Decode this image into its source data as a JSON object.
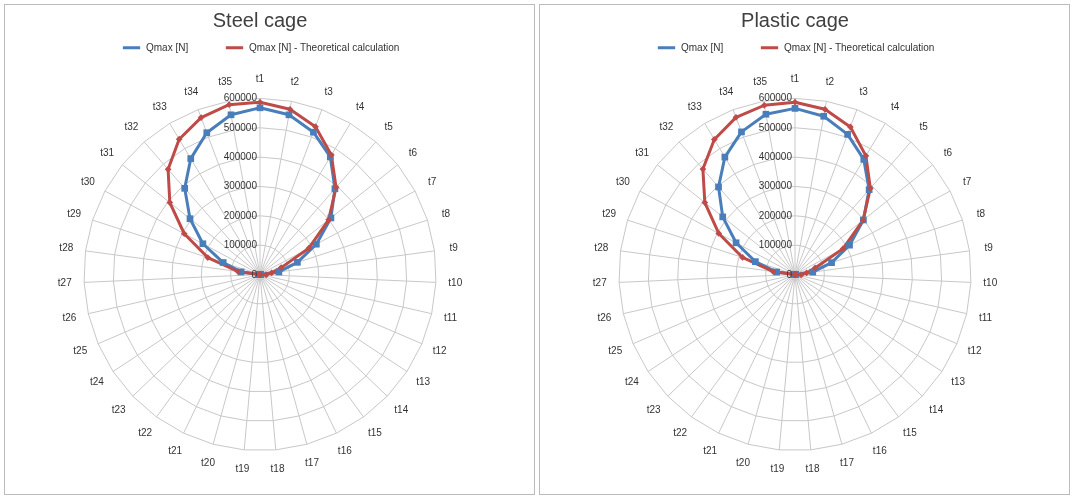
{
  "chart_data": [
    {
      "type": "radar",
      "title": "Steel cage",
      "categories": [
        "t1",
        "t2",
        "t3",
        "t4",
        "t5",
        "t6",
        "t7",
        "t8",
        "t9",
        "t10",
        "t11",
        "t12",
        "t13",
        "t14",
        "t15",
        "t16",
        "t17",
        "t18",
        "t19",
        "t20",
        "t21",
        "t22",
        "t23",
        "t24",
        "t25",
        "t26",
        "t27",
        "t28",
        "t29",
        "t30",
        "t31",
        "t32",
        "t33",
        "t34",
        "t35"
      ],
      "ylim": [
        0,
        600000
      ],
      "yticks": [
        0,
        100000,
        200000,
        300000,
        400000,
        500000,
        600000
      ],
      "grid": true,
      "legend": "top",
      "series": [
        {
          "name": "Qmax [N]",
          "color": "#4a7ebb",
          "marker": "square",
          "values": [
            568000,
            553000,
            518000,
            467000,
            388000,
            309000,
            218000,
            134000,
            65000,
            0,
            0,
            0,
            0,
            0,
            0,
            0,
            0,
            0,
            0,
            0,
            0,
            0,
            0,
            0,
            0,
            0,
            0,
            65000,
            132000,
            221000,
            305000,
            390000,
            460000,
            516000,
            553000
          ]
        },
        {
          "name": "Qmax [N] - Theoretical calculation",
          "color": "#be4b48",
          "marker": "diamond",
          "values": [
            587000,
            572000,
            538000,
            474000,
            394000,
            299000,
            189000,
            76000,
            40000,
            21000,
            0,
            0,
            0,
            0,
            0,
            0,
            0,
            0,
            0,
            0,
            0,
            0,
            0,
            0,
            0,
            0,
            null,
            76000,
            187000,
            293000,
            393000,
            476000,
            537000,
            571000,
            588000
          ]
        }
      ]
    },
    {
      "type": "radar",
      "title": "Plastic cage",
      "categories": [
        "t1",
        "t2",
        "t3",
        "t4",
        "t5",
        "t6",
        "t7",
        "t8",
        "t9",
        "t10",
        "t11",
        "t12",
        "t13",
        "t14",
        "t15",
        "t16",
        "t17",
        "t18",
        "t19",
        "t20",
        "t21",
        "t22",
        "t23",
        "t24",
        "t25",
        "t26",
        "t27",
        "t28",
        "t29",
        "t30",
        "t31",
        "t32",
        "t33",
        "t34",
        "t35"
      ],
      "ylim": [
        0,
        600000
      ],
      "yticks": [
        0,
        100000,
        200000,
        300000,
        400000,
        500000,
        600000
      ],
      "grid": true,
      "legend": "top",
      "series": [
        {
          "name": "Qmax [N]",
          "color": "#4a7ebb",
          "marker": "square",
          "values": [
            566000,
            548000,
            510000,
            457000,
            384000,
            298000,
            211000,
            131000,
            61000,
            0,
            0,
            0,
            0,
            0,
            0,
            0,
            0,
            0,
            0,
            0,
            0,
            0,
            0,
            0,
            0,
            0,
            0,
            63000,
            142000,
            228000,
            315000,
            396000,
            466000,
            519000,
            555000
          ]
        },
        {
          "name": "Qmax [N] - Theoretical calculation",
          "color": "#be4b48",
          "marker": "diamond",
          "values": [
            587000,
            572000,
            537000,
            471000,
            390000,
            297000,
            186000,
            72000,
            40000,
            21000,
            0,
            0,
            0,
            0,
            0,
            0,
            0,
            0,
            0,
            0,
            0,
            0,
            0,
            0,
            0,
            0,
            null,
            75000,
            188000,
            295000,
            393000,
            477000,
            536000,
            572000,
            586000
          ]
        }
      ]
    }
  ]
}
